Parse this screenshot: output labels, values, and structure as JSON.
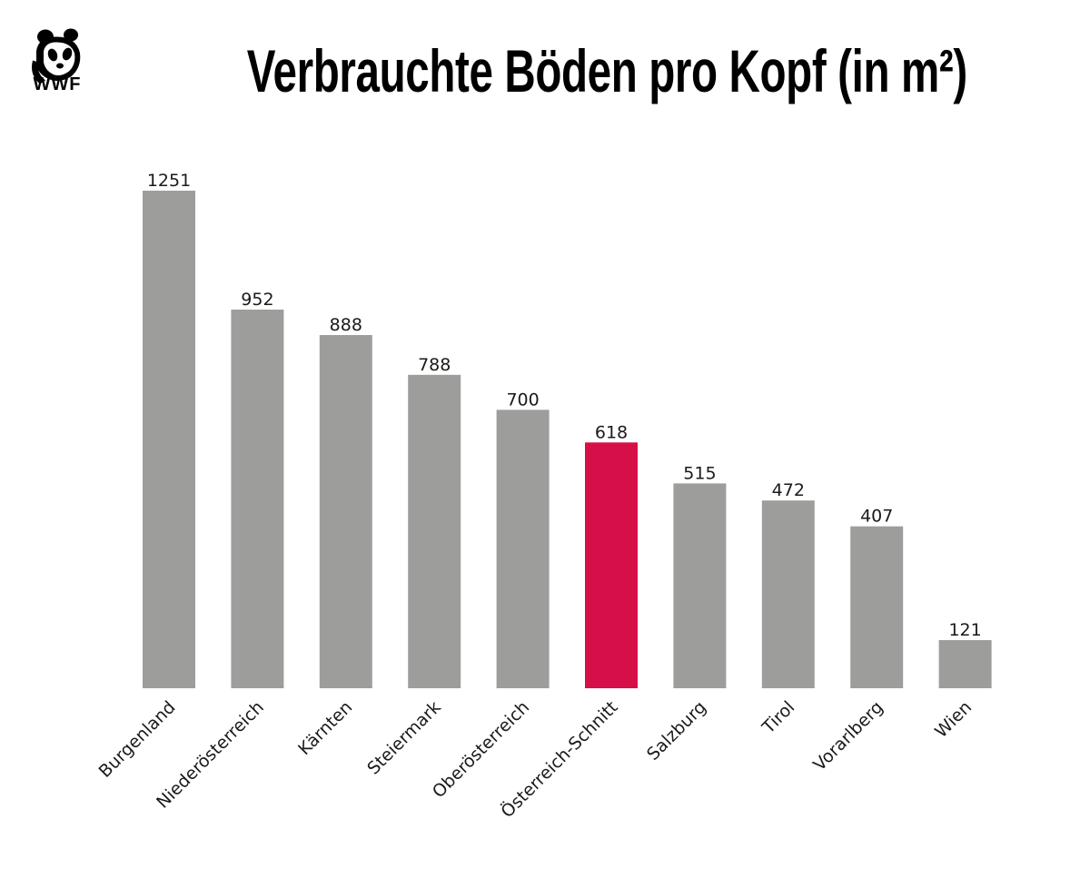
{
  "logo": {
    "text": "WWF",
    "icon": "panda-icon"
  },
  "chart_data": {
    "type": "bar",
    "title": "Verbrauchte Böden pro Kopf (in m²)",
    "xlabel": "",
    "ylabel": "",
    "ylim": [
      0,
      1251
    ],
    "grid": false,
    "categories": [
      "Burgenland",
      "Niederösterreich",
      "Kärnten",
      "Steiermark",
      "Oberösterreich",
      "Österreich-Schnitt",
      "Salzburg",
      "Tirol",
      "Vorarlberg",
      "Wien"
    ],
    "values": [
      1251,
      952,
      888,
      788,
      700,
      618,
      515,
      472,
      407,
      121
    ],
    "data_labels": [
      "1251",
      "952",
      "888",
      "788",
      "700",
      "618",
      "515",
      "472",
      "407",
      "121"
    ],
    "colors": {
      "default": "#9d9d9c",
      "highlight": "#d70f48"
    },
    "highlight_category": "Österreich-Schnitt"
  }
}
